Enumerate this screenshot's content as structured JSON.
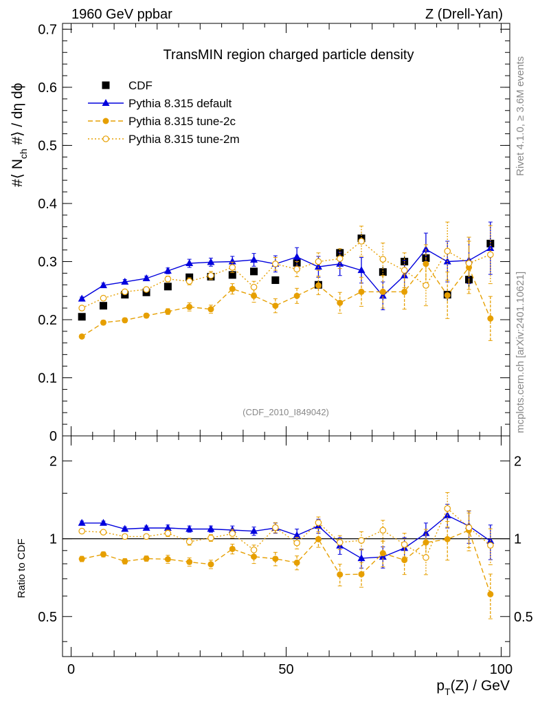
{
  "header": {
    "beam": "1960 GeV ppbar",
    "process": "Z (Drell-Yan)"
  },
  "side_text": {
    "rivet": "Rivet 4.1.0, ≥ 3.6M events",
    "mcplots": "mcplots.cern.ch [arXiv:2401.10621]"
  },
  "colors": {
    "cdf": "#000000",
    "default": "#0000dd",
    "tune2c": "#e69f00",
    "tune2m": "#e69f00"
  },
  "chart_data": [
    {
      "type": "scatter",
      "panel": "main",
      "title": "TransMIN region charged particle density",
      "watermark": "(CDF_2010_I849042)",
      "ylabel": "#⟨ N_ch #⟩ / dη dϕ",
      "ylabel_parts": {
        "a": "#⟨ N",
        "sub": "ch",
        "b": " #⟩ / dη dϕ"
      },
      "xlim": [
        -2,
        102
      ],
      "ylim": [
        0,
        0.71
      ],
      "yticks": [
        0,
        0.1,
        0.2,
        0.3,
        0.4,
        0.5,
        0.6,
        0.7
      ],
      "ytick_labels": [
        "0",
        "0.1",
        "0.2",
        "0.3",
        "0.4",
        "0.5",
        "0.6",
        "0.7"
      ],
      "legend_position": "top-left",
      "x": [
        2.5,
        7.5,
        12.5,
        17.5,
        22.5,
        27.5,
        32.5,
        37.5,
        42.5,
        47.5,
        52.5,
        57.5,
        62.5,
        67.5,
        72.5,
        77.5,
        82.5,
        87.5,
        92.5,
        97.5
      ],
      "series": [
        {
          "name": "CDF",
          "key": "cdf",
          "marker": "square",
          "values": [
            0.205,
            0.224,
            0.243,
            0.247,
            0.257,
            0.273,
            0.274,
            0.277,
            0.283,
            0.268,
            0.298,
            0.26,
            0.315,
            0.34,
            0.282,
            0.3,
            0.306,
            0.243,
            0.269,
            0.331
          ],
          "errors": [
            0.004,
            0.004,
            0.004,
            0.004,
            0.004,
            0.004,
            0.004,
            0.005,
            0.005,
            0.006,
            0.007,
            0.008,
            0.008,
            0.008,
            0.009,
            0.009,
            0.01,
            0.01,
            0.012,
            0.013
          ]
        },
        {
          "name": "Pythia 8.315 default",
          "key": "default",
          "marker": "triangle",
          "values": [
            0.236,
            0.259,
            0.265,
            0.271,
            0.284,
            0.297,
            0.299,
            0.3,
            0.303,
            0.296,
            0.308,
            0.291,
            0.296,
            0.285,
            0.241,
            0.276,
            0.321,
            0.3,
            0.302,
            0.323
          ],
          "errors": [
            0.003,
            0.004,
            0.004,
            0.004,
            0.005,
            0.007,
            0.007,
            0.009,
            0.011,
            0.014,
            0.016,
            0.018,
            0.02,
            0.022,
            0.024,
            0.026,
            0.028,
            0.035,
            0.04,
            0.045
          ]
        },
        {
          "name": "Pythia 8.315 tune-2c",
          "key": "tune2c",
          "marker": "circle",
          "dash": "7,4",
          "values": [
            0.171,
            0.195,
            0.199,
            0.207,
            0.214,
            0.222,
            0.218,
            0.253,
            0.241,
            0.224,
            0.241,
            0.259,
            0.229,
            0.248,
            0.248,
            0.248,
            0.296,
            0.242,
            0.29,
            0.202
          ],
          "errors": [
            0.003,
            0.004,
            0.004,
            0.004,
            0.005,
            0.007,
            0.007,
            0.009,
            0.011,
            0.012,
            0.013,
            0.016,
            0.018,
            0.025,
            0.028,
            0.03,
            0.033,
            0.04,
            0.045,
            0.038
          ]
        },
        {
          "name": "Pythia 8.315 tune-2m",
          "key": "tune2m",
          "marker": "open-circle",
          "dash": "2,3",
          "values": [
            0.22,
            0.237,
            0.248,
            0.252,
            0.27,
            0.266,
            0.276,
            0.29,
            0.256,
            0.296,
            0.287,
            0.3,
            0.305,
            0.335,
            0.304,
            0.285,
            0.259,
            0.318,
            0.297,
            0.312
          ],
          "errors": [
            0.003,
            0.004,
            0.004,
            0.004,
            0.005,
            0.006,
            0.007,
            0.009,
            0.01,
            0.011,
            0.013,
            0.015,
            0.017,
            0.026,
            0.028,
            0.03,
            0.035,
            0.05,
            0.045,
            0.05
          ]
        }
      ]
    },
    {
      "type": "scatter",
      "panel": "ratio",
      "ylabel": "Ratio to CDF",
      "xlabel": "p_T(Z) / GeV",
      "xlabel_parts": {
        "a": "p",
        "sub": "T",
        "b": "(Z) / GeV"
      },
      "xlim": [
        -2,
        102
      ],
      "xticks": [
        0,
        50,
        100
      ],
      "xtick_labels": [
        "0",
        "50",
        "100"
      ],
      "ylim": [
        0.35,
        2.5
      ],
      "yticks": [
        0.5,
        1,
        2
      ],
      "ytick_labels": [
        "0.5",
        "1",
        "2"
      ],
      "reference_line": 1,
      "x": [
        2.5,
        7.5,
        12.5,
        17.5,
        22.5,
        27.5,
        32.5,
        37.5,
        42.5,
        47.5,
        52.5,
        57.5,
        62.5,
        67.5,
        72.5,
        77.5,
        82.5,
        87.5,
        92.5,
        97.5
      ],
      "series": [
        {
          "name": "Pythia 8.315 default",
          "key": "default",
          "marker": "triangle",
          "values": [
            1.15,
            1.15,
            1.09,
            1.1,
            1.1,
            1.09,
            1.09,
            1.08,
            1.07,
            1.1,
            1.03,
            1.12,
            0.94,
            0.84,
            0.85,
            0.92,
            1.05,
            1.23,
            1.12,
            0.98
          ],
          "errors": [
            0.02,
            0.02,
            0.02,
            0.02,
            0.03,
            0.03,
            0.03,
            0.04,
            0.04,
            0.05,
            0.06,
            0.07,
            0.07,
            0.07,
            0.08,
            0.09,
            0.1,
            0.13,
            0.16,
            0.15
          ]
        },
        {
          "name": "Pythia 8.315 tune-2c",
          "key": "tune2c",
          "marker": "circle",
          "dash": "7,4",
          "values": [
            0.835,
            0.87,
            0.818,
            0.838,
            0.833,
            0.813,
            0.796,
            0.913,
            0.852,
            0.836,
            0.808,
            0.996,
            0.727,
            0.729,
            0.879,
            0.827,
            0.967,
            0.996,
            1.078,
            0.61
          ],
          "errors": [
            0.02,
            0.02,
            0.02,
            0.02,
            0.03,
            0.03,
            0.03,
            0.04,
            0.05,
            0.05,
            0.05,
            0.07,
            0.07,
            0.08,
            0.1,
            0.1,
            0.12,
            0.17,
            0.18,
            0.12
          ]
        },
        {
          "name": "Pythia 8.315 tune-2m",
          "key": "tune2m",
          "marker": "open-circle",
          "dash": "2,3",
          "values": [
            1.07,
            1.06,
            1.02,
            1.02,
            1.05,
            0.974,
            1.007,
            1.047,
            0.905,
            1.104,
            0.963,
            1.154,
            0.968,
            0.985,
            1.078,
            0.95,
            0.846,
            1.309,
            1.104,
            0.943
          ],
          "errors": [
            0.02,
            0.02,
            0.02,
            0.02,
            0.03,
            0.03,
            0.03,
            0.04,
            0.04,
            0.05,
            0.05,
            0.06,
            0.06,
            0.08,
            0.1,
            0.1,
            0.12,
            0.2,
            0.18,
            0.15
          ]
        }
      ]
    }
  ]
}
